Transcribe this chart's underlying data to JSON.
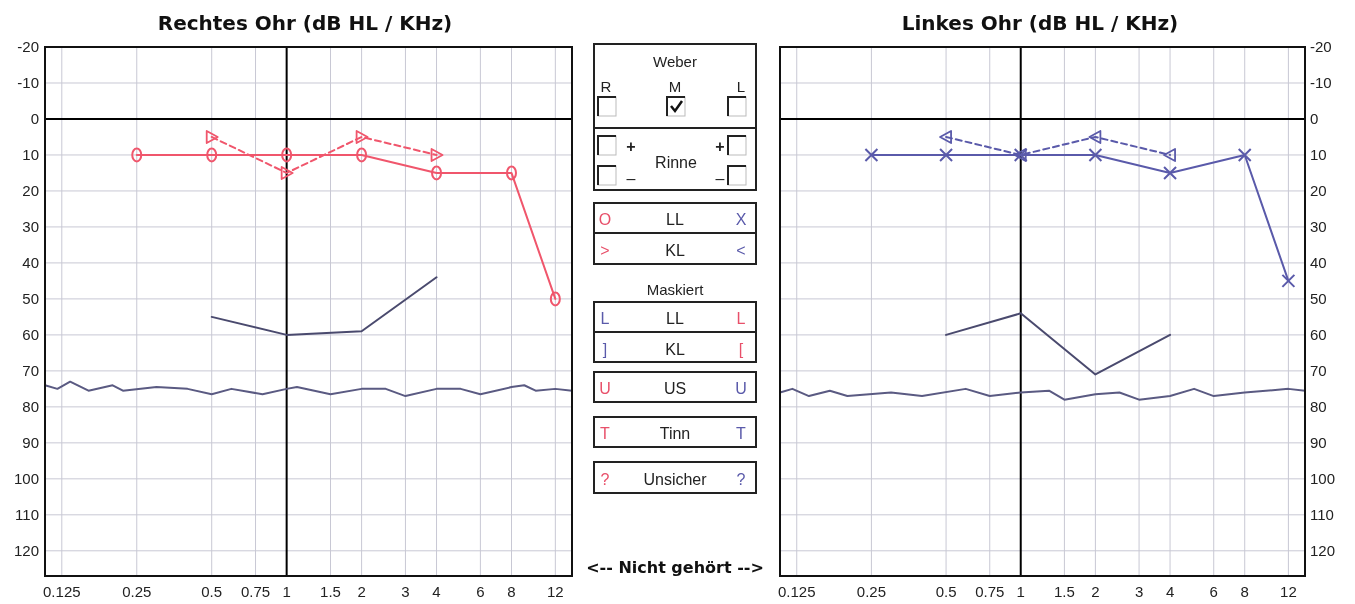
{
  "chart_data": [
    {
      "type": "line",
      "title": "Rechtes Ohr (dB HL / KHz)",
      "log": "x",
      "xlim": [
        0.107,
        14
      ],
      "xticks": [
        0.125,
        0.25,
        0.5,
        0.75,
        1,
        1.5,
        2,
        3,
        4,
        6,
        8,
        12
      ],
      "ylim": [
        127,
        -20
      ],
      "yticks": [
        -20,
        -10,
        0,
        10,
        20,
        30,
        40,
        50,
        60,
        70,
        80,
        90,
        100,
        110,
        120
      ],
      "grid": true,
      "series": [
        {
          "color": "#000000",
          "marker": "none",
          "line_style": "solid",
          "x": [
            0.107,
            14
          ],
          "values": [
            0,
            0
          ]
        },
        {
          "color": "#000000",
          "marker": "none",
          "line_style": "solid",
          "x": [
            1,
            1
          ],
          "values": [
            127,
            -20
          ]
        },
        {
          "color": "#f0566c",
          "marker": "circle",
          "line_style": "solid",
          "x": [
            0.25,
            0.5,
            1,
            2,
            4,
            8,
            12
          ],
          "values": [
            10,
            10,
            10,
            10,
            15,
            15,
            50
          ]
        },
        {
          "color": "#f0566c",
          "marker": "triangle",
          "line_style": "dashed",
          "x": [
            0.5,
            1,
            2,
            4
          ],
          "values": [
            5,
            15,
            5,
            10
          ]
        },
        {
          "color": "#4a4a6e",
          "marker": "none",
          "line_style": "solid",
          "x": [
            0.5,
            1,
            2,
            4
          ],
          "values": [
            55,
            60,
            59,
            44
          ]
        },
        {
          "color": "#5a5a82",
          "marker": "none",
          "line_style": "solid",
          "x": [
            0.107,
            0.12,
            0.135,
            0.16,
            0.2,
            0.22,
            0.3,
            0.4,
            0.5,
            0.6,
            0.8,
            1,
            1.1,
            1.5,
            2,
            2.5,
            3,
            4,
            5,
            6,
            8,
            9,
            10,
            12,
            14
          ],
          "values": [
            74,
            75,
            73,
            75.5,
            74,
            75.5,
            74.5,
            75,
            76.5,
            75,
            76.5,
            75,
            74.5,
            76.5,
            75,
            75,
            77,
            75,
            75,
            76.5,
            74.5,
            74,
            75.5,
            75,
            75.5
          ]
        }
      ]
    },
    {
      "type": "other",
      "annotations": [
        "Weber",
        "R",
        "M",
        "L",
        "+",
        "Rinne",
        "+",
        "–",
        "–",
        "O",
        "LL",
        "X",
        ">",
        "KL",
        "<",
        "Maskiert",
        "L",
        "LL",
        "L",
        "]",
        "KL",
        "[",
        "U",
        "US",
        "U",
        "T",
        "Tinn",
        "T",
        "?",
        "Unsicher",
        "?",
        "<-- Nicht gehört -->"
      ]
    },
    {
      "type": "line",
      "title": "Linkes Ohr (dB HL / KHz)",
      "log": "x",
      "xlim": [
        0.107,
        14
      ],
      "xticks": [
        0.125,
        0.25,
        0.5,
        0.75,
        1,
        1.5,
        2,
        3,
        4,
        6,
        8,
        12
      ],
      "y2lim": [
        127,
        -20
      ],
      "y2ticks": [
        -20,
        -10,
        0,
        10,
        20,
        30,
        40,
        50,
        60,
        70,
        80,
        90,
        100,
        110,
        120
      ],
      "grid": true,
      "series": [
        {
          "color": "#000000",
          "marker": "none",
          "line_style": "solid",
          "axis": "y2",
          "x": [
            0.107,
            14
          ],
          "values": [
            0,
            0
          ]
        },
        {
          "color": "#000000",
          "marker": "none",
          "line_style": "solid",
          "axis": "y2",
          "x": [
            1,
            1
          ],
          "values": [
            127,
            -20
          ]
        },
        {
          "color": "#5a5aaa",
          "marker": "cross",
          "line_style": "solid",
          "axis": "y2",
          "x": [
            0.25,
            0.5,
            1,
            2,
            4,
            8,
            12
          ],
          "values": [
            10,
            10,
            10,
            10,
            15,
            10,
            45
          ]
        },
        {
          "color": "#5a5aaa",
          "marker": "triangle",
          "line_style": "dashed",
          "axis": "y2",
          "x": [
            0.5,
            1,
            2,
            4
          ],
          "values": [
            5,
            10,
            5,
            10
          ]
        },
        {
          "color": "#4a4a6e",
          "marker": "none",
          "line_style": "solid",
          "axis": "y2",
          "x": [
            0.5,
            1,
            2,
            4
          ],
          "values": [
            60,
            54,
            71,
            60
          ]
        },
        {
          "color": "#5a5a82",
          "marker": "none",
          "line_style": "solid",
          "axis": "y2",
          "x": [
            0.107,
            0.12,
            0.14,
            0.17,
            0.2,
            0.3,
            0.4,
            0.6,
            0.75,
            1,
            1.3,
            1.5,
            2,
            2.5,
            3,
            4,
            5,
            6,
            8,
            12,
            14
          ],
          "values": [
            76,
            75,
            77,
            75.5,
            77,
            76,
            77,
            75,
            77,
            76,
            75.5,
            78,
            76.5,
            76,
            78,
            77,
            75,
            77,
            76,
            75,
            75.5
          ]
        }
      ]
    }
  ]
}
